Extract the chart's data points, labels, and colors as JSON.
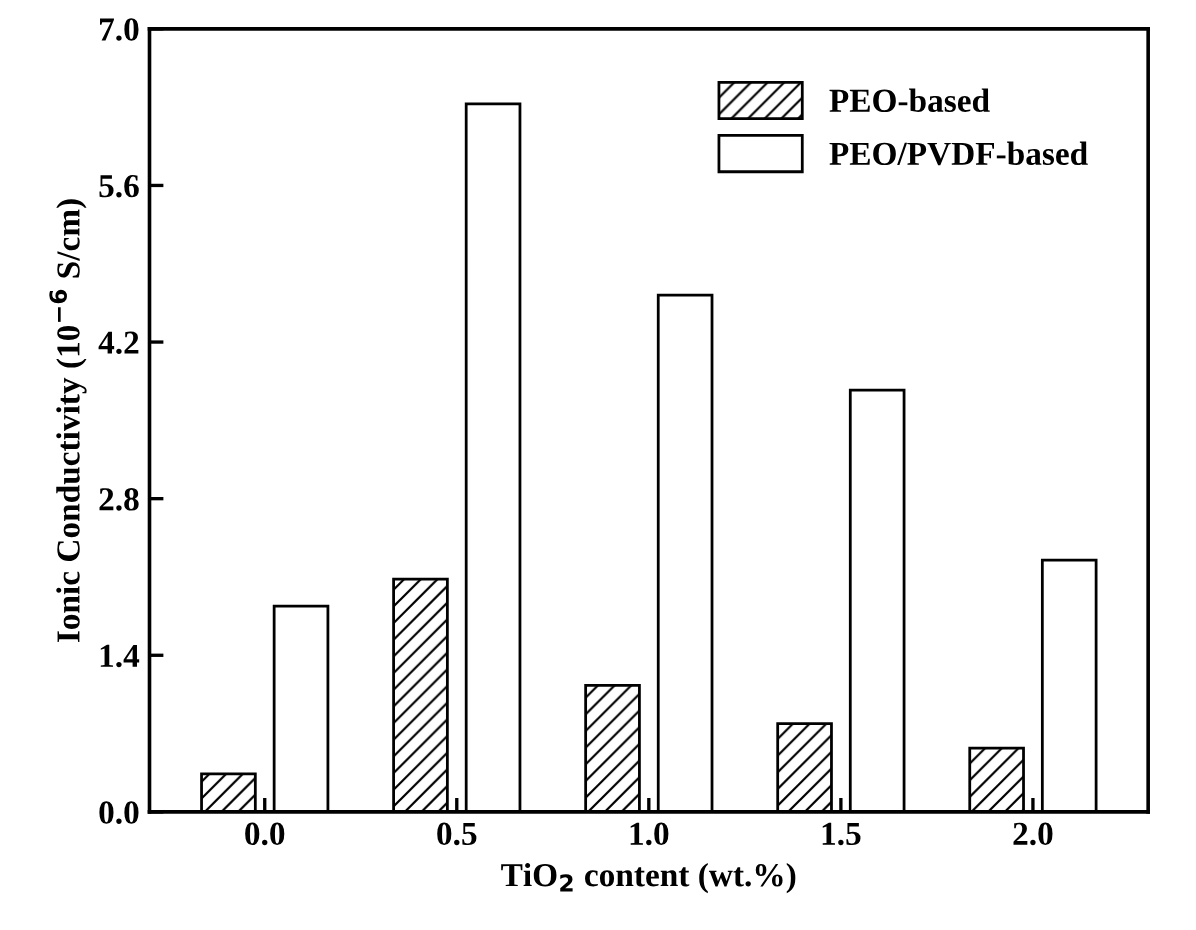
{
  "chart_data": {
    "type": "bar",
    "xlabel": "TiO$_{2}$ content (wt.%)",
    "ylabel": "Ionic Conductivity (10$^{−6}$ S/cm)",
    "categories": [
      "0.0",
      "0.5",
      "1.0",
      "1.5",
      "2.0"
    ],
    "series": [
      {
        "name": "PEO-based",
        "color": "#000000",
        "values": [
          0.34,
          2.08,
          1.13,
          0.79,
          0.57
        ]
      },
      {
        "name": "PEO/PVDF-based",
        "color": "#000000",
        "values": [
          1.84,
          6.33,
          4.62,
          3.77,
          2.25
        ]
      }
    ],
    "ylim": [
      0,
      7.0
    ],
    "yticks": [
      {
        "value": 0,
        "label": "0.0"
      },
      1.4,
      2.8,
      4.2,
      5.6,
      {
        "value": 7,
        "label": "7.0"
      }
    ],
    "legend": "top right",
    "grid": false
  }
}
